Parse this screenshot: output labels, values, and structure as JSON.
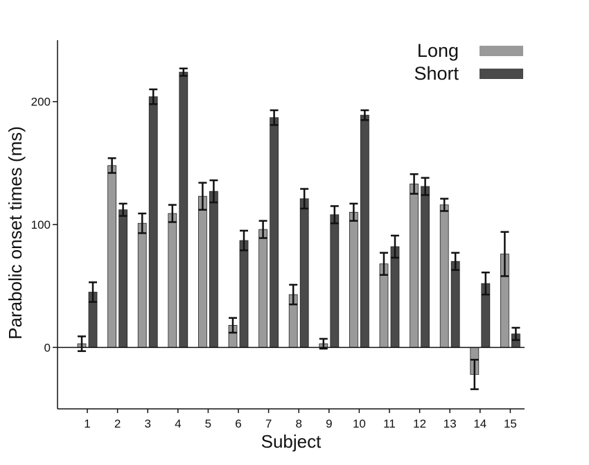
{
  "chart_data": {
    "type": "bar",
    "title": "",
    "xlabel": "Subject",
    "ylabel": "Parabolic onset times (ms)",
    "categories": [
      "1",
      "2",
      "3",
      "4",
      "5",
      "6",
      "7",
      "8",
      "9",
      "10",
      "11",
      "12",
      "13",
      "14",
      "15"
    ],
    "ylim": [
      -50,
      250
    ],
    "yticks": [
      0,
      100,
      200
    ],
    "grid": false,
    "legend_position": "top-right",
    "series": [
      {
        "name": "Long",
        "color": "#9a9a9a",
        "values": [
          3,
          148,
          101,
          109,
          123,
          18,
          96,
          43,
          3,
          110,
          68,
          133,
          116,
          -22,
          76
        ],
        "errors": [
          6,
          6,
          8,
          7,
          11,
          6,
          7,
          8,
          4,
          7,
          9,
          8,
          5,
          12,
          18
        ]
      },
      {
        "name": "Short",
        "color": "#4a4a4a",
        "values": [
          45,
          112,
          204,
          224,
          127,
          87,
          187,
          121,
          108,
          189,
          82,
          131,
          70,
          52,
          11
        ],
        "errors": [
          8,
          5,
          6,
          3,
          9,
          8,
          6,
          8,
          7,
          4,
          9,
          7,
          7,
          9,
          5
        ]
      }
    ]
  }
}
